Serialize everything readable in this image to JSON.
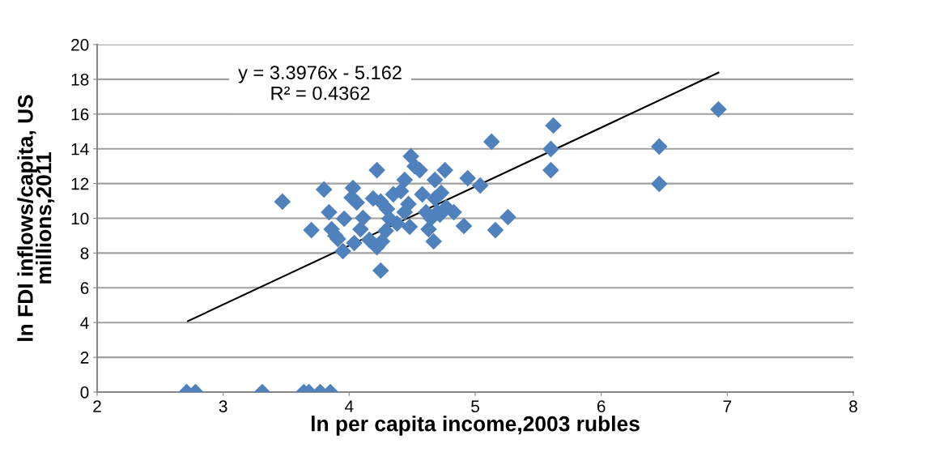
{
  "chart_data": {
    "type": "scatter",
    "xlabel": "ln per capita income,2003 rubles",
    "ylabel": "ln FDI inflows/capita, US millions,2011",
    "xlim": [
      2,
      8
    ],
    "xticks": [
      2,
      3,
      4,
      5,
      6,
      7,
      8
    ],
    "ylim": [
      0,
      20
    ],
    "yticks": [
      0,
      2,
      4,
      6,
      8,
      10,
      12,
      14,
      16,
      18,
      20
    ],
    "grid": "y",
    "marker": "diamond",
    "annotations": [
      "y = 3.3976x - 5.162\nR² = 0.4362"
    ],
    "series": [
      {
        "color": "#4f81bd",
        "x": [
          2.71,
          2.78,
          3.31,
          3.64,
          3.68,
          3.77,
          3.85,
          3.47,
          3.7,
          3.8,
          3.84,
          3.86,
          3.89,
          3.91,
          3.95,
          3.96,
          4.03,
          4.04,
          4.02,
          4.06,
          4.09,
          4.11,
          4.16,
          4.19,
          4.22,
          4.25,
          4.22,
          4.25,
          4.26,
          4.29,
          4.3,
          4.32,
          4.35,
          4.38,
          4.41,
          4.44,
          4.47,
          4.49,
          4.44,
          4.48,
          4.52,
          4.56,
          4.58,
          4.61,
          4.63,
          4.65,
          4.68,
          4.7,
          4.68,
          4.67,
          4.72,
          4.76,
          4.77,
          4.73,
          4.83,
          4.91,
          4.94,
          5.04,
          5.13,
          5.16,
          5.26,
          5.62,
          5.6,
          5.6,
          6.46,
          6.46,
          6.93
        ],
        "values": [
          0,
          0,
          0,
          0,
          0,
          0,
          0,
          10.96,
          9.32,
          11.66,
          10.35,
          9.37,
          9.0,
          8.81,
          8.11,
          9.98,
          11.75,
          8.58,
          11.19,
          10.91,
          9.37,
          10.02,
          8.76,
          11.14,
          12.77,
          10.96,
          8.34,
          6.99,
          8.67,
          9.28,
          10.54,
          9.98,
          11.38,
          9.7,
          11.56,
          12.21,
          10.82,
          13.57,
          10.35,
          9.51,
          13.0,
          12.77,
          11.38,
          10.35,
          9.37,
          10.0,
          11.14,
          10.35,
          12.21,
          8.67,
          10.21,
          12.77,
          10.63,
          11.47,
          10.35,
          9.56,
          12.31,
          11.89,
          14.41,
          9.32,
          10.07,
          15.34,
          13.99,
          12.77,
          14.13,
          11.98,
          16.27
        ]
      },
      {
        "type": "line",
        "color": "#000000",
        "marker": "none",
        "x": [
          2.72,
          6.93
        ],
        "values": [
          4.08,
          18.38
        ]
      }
    ]
  }
}
